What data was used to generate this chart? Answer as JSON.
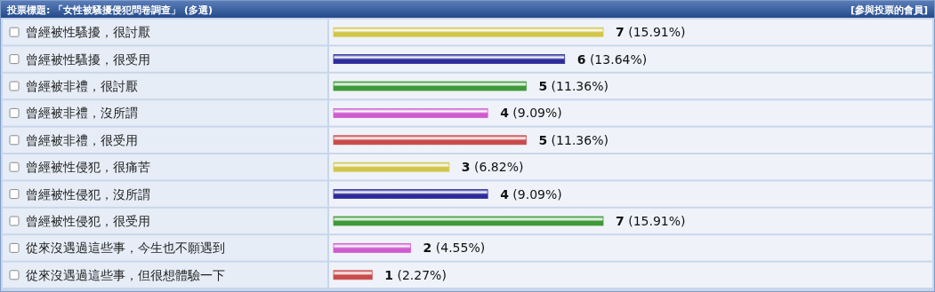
{
  "chart_data": {
    "type": "bar",
    "orientation": "horizontal",
    "title": "投票標題: 「女性被騷擾侵犯問卷調查」 (多選)",
    "annotations": [
      "[參與投票的會員]"
    ],
    "categories": [
      "曾經被性騷擾，很討厭",
      "曾經被性騷擾，很受用",
      "曾經被非禮，很討厭",
      "曾經被非禮，沒所謂",
      "曾經被非禮，很受用",
      "曾經被性侵犯，很痛苦",
      "曾經被性侵犯，沒所謂",
      "曾經被性侵犯，很受用",
      "從來沒遇過這些事，今生也不願遇到",
      "從來沒遇過這些事，但很想體驗一下"
    ],
    "values": [
      7,
      6,
      5,
      4,
      5,
      3,
      4,
      7,
      2,
      1
    ],
    "colors": [
      "#d2c64a",
      "#2c2c9c",
      "#3f9a3a",
      "#cf5bcf",
      "#c94a4a",
      "#d2c64a",
      "#2c2c9c",
      "#3f9a3a",
      "#cf5bcf",
      "#c94a4a"
    ],
    "value_labels": [
      "7 (15.91%)",
      "6 (13.64%)",
      "5 (11.36%)",
      "4 (9.09%)",
      "5 (11.36%)",
      "3 (6.82%)",
      "4 (9.09%)",
      "7 (15.91%)",
      "2 (4.55%)",
      "1 (2.27%)"
    ]
  }
}
